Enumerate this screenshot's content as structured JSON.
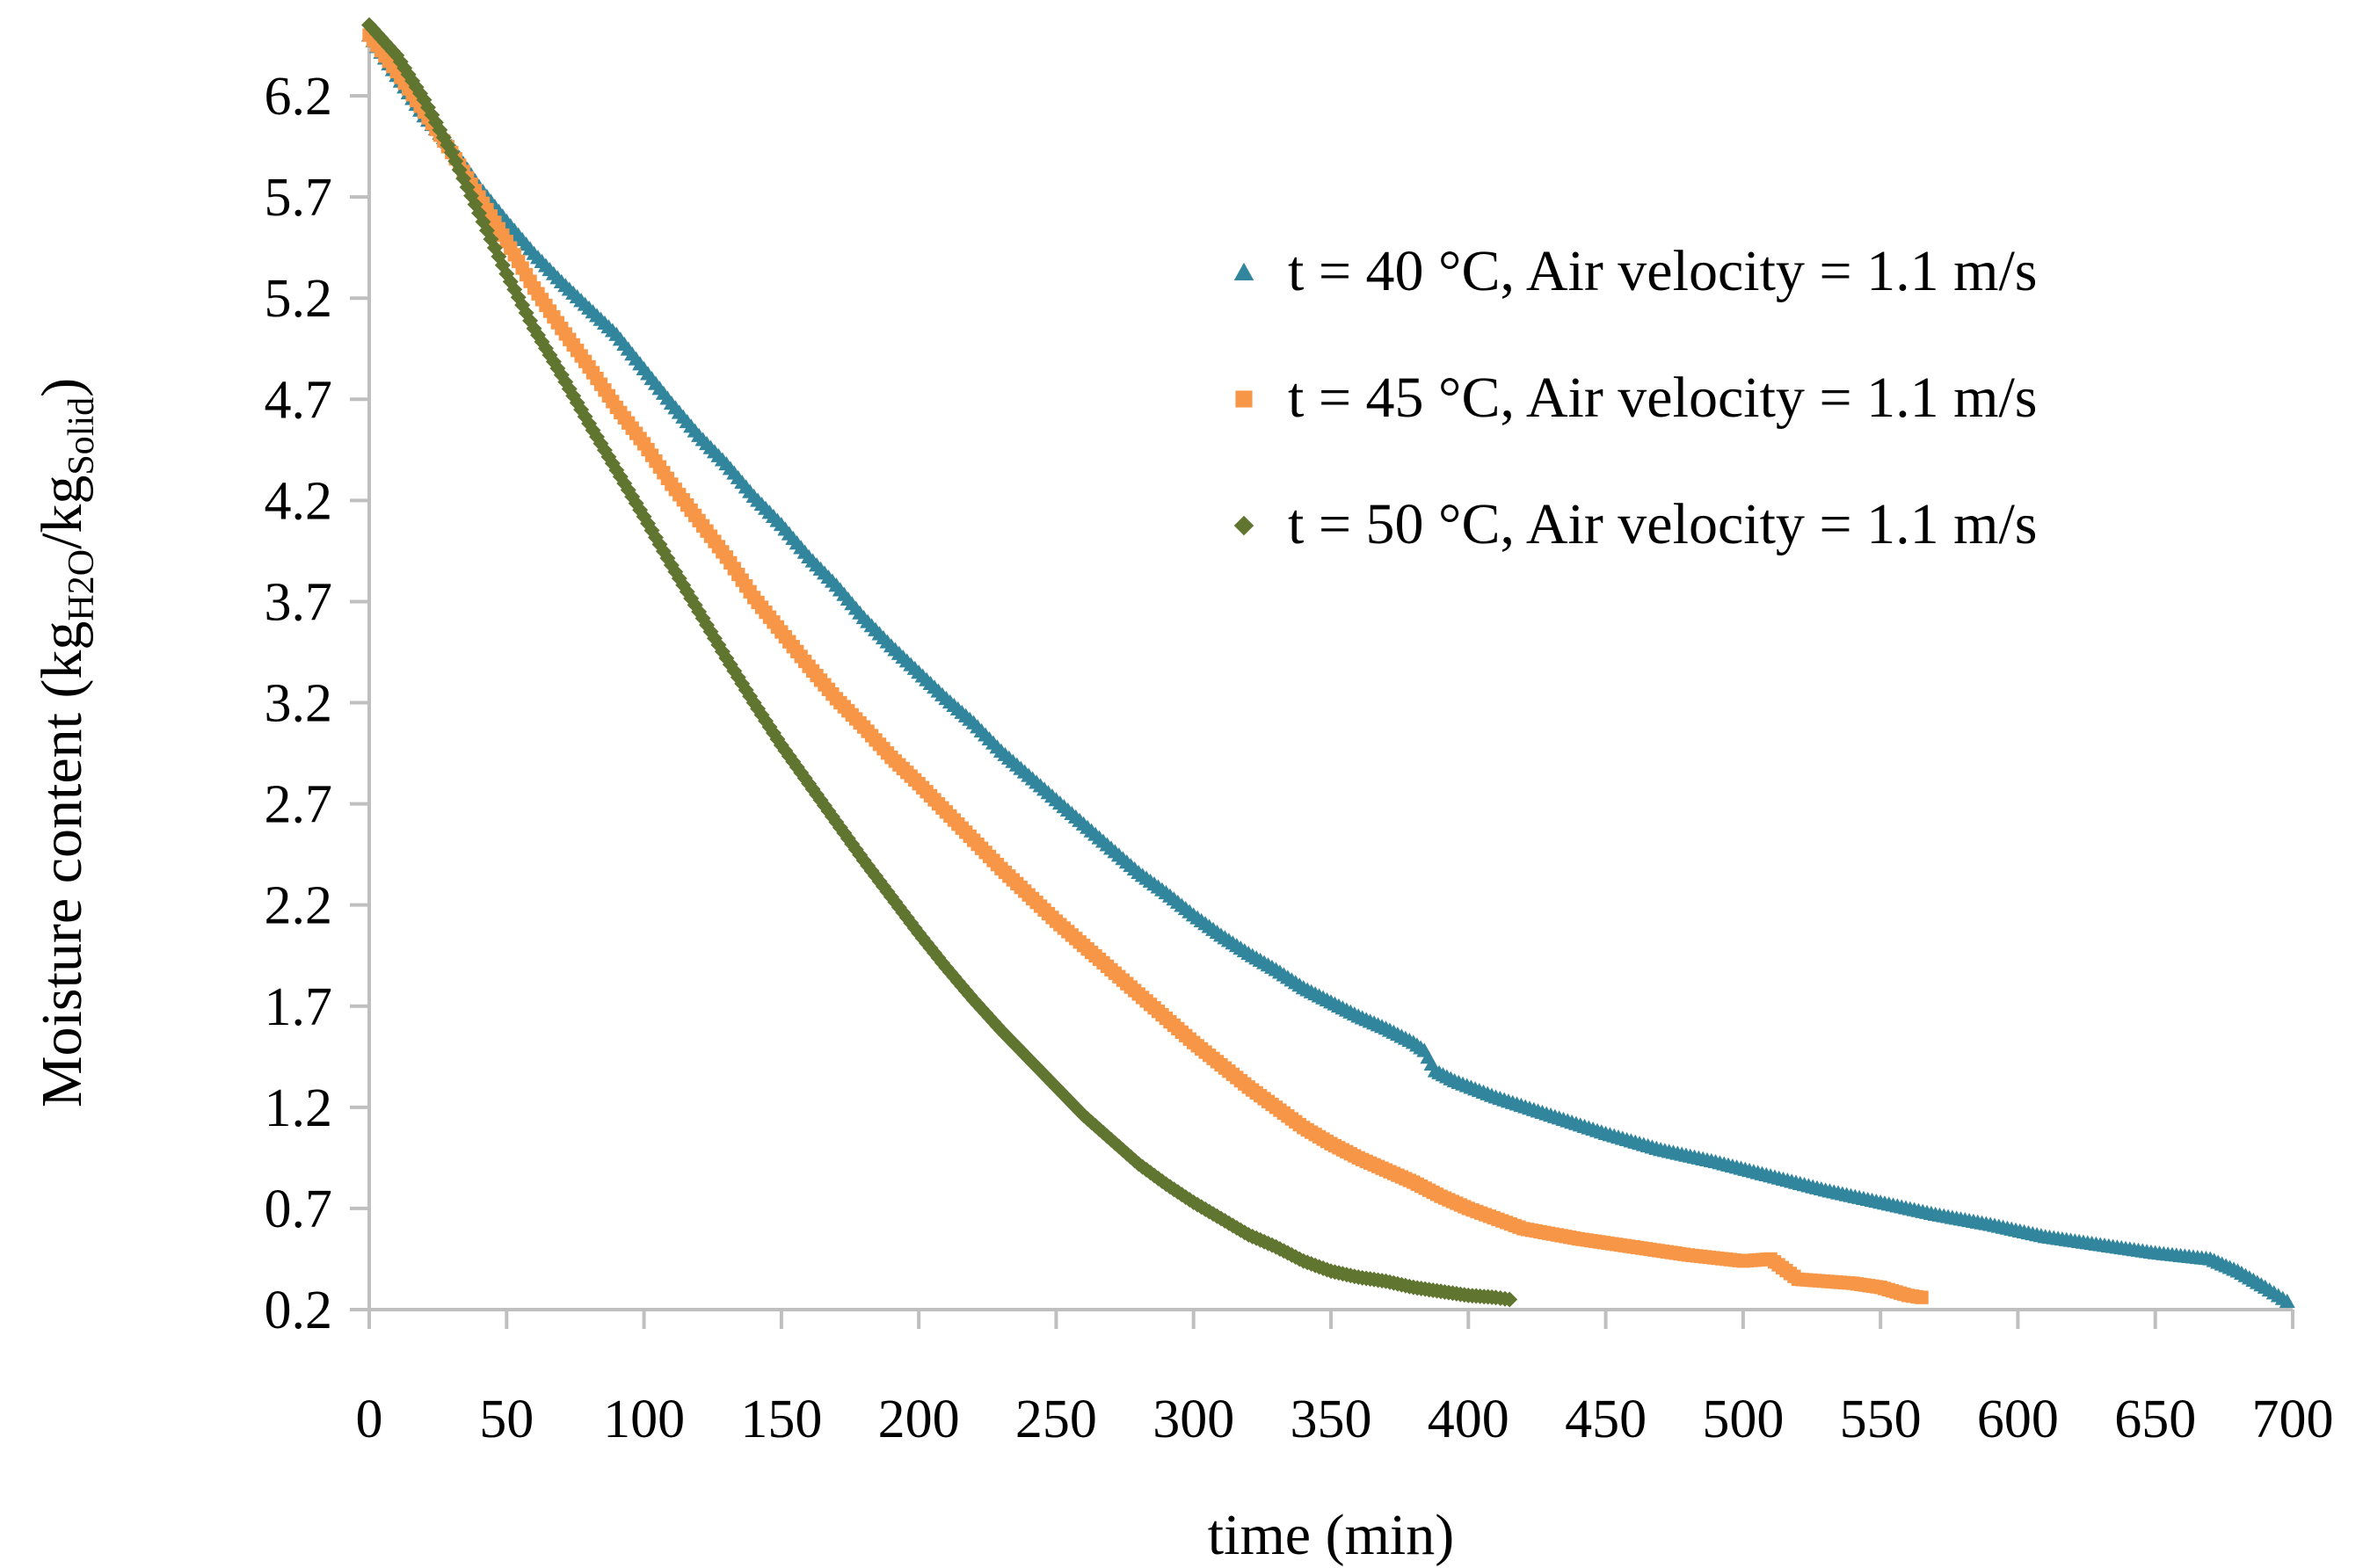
{
  "chart_data": {
    "type": "scatter",
    "title": "",
    "xlabel": "time (min)",
    "ylabel": {
      "prefix": "Moisture content (kg",
      "sub1": "H2O",
      "middle": "/kg",
      "sub2": "Solid",
      "suffix": ")"
    },
    "xlim": [
      0,
      700
    ],
    "ylim": [
      0.2,
      6.5
    ],
    "x_ticks": [
      0,
      50,
      100,
      150,
      200,
      250,
      300,
      350,
      400,
      450,
      500,
      550,
      600,
      650,
      700
    ],
    "x_tick_labels": [
      "0",
      "50",
      "100",
      "150",
      "200",
      "250",
      "300",
      "350",
      "400",
      "450",
      "500",
      "550",
      "600",
      "650",
      "700"
    ],
    "y_ticks": [
      0.2,
      0.7,
      1.2,
      1.7,
      2.2,
      2.7,
      3.2,
      3.7,
      4.2,
      4.7,
      5.2,
      5.7,
      6.2
    ],
    "y_tick_labels": [
      "0.2",
      "0.7",
      "1.2",
      "1.7",
      "2.2",
      "2.7",
      "3.2",
      "3.7",
      "4.2",
      "4.7",
      "5.2",
      "5.7",
      "6.2"
    ],
    "grid": false,
    "legend_position": "top-right",
    "series": [
      {
        "name": "t = 40 °C, Air velocity = 1.1 m/s",
        "color": "#31859c",
        "marker": "triangle",
        "points": [
          [
            0,
            6.5
          ],
          [
            10,
            6.3
          ],
          [
            20,
            6.1
          ],
          [
            30,
            5.95
          ],
          [
            40,
            5.75
          ],
          [
            50,
            5.58
          ],
          [
            60,
            5.42
          ],
          [
            70,
            5.28
          ],
          [
            80,
            5.15
          ],
          [
            90,
            5.02
          ],
          [
            100,
            4.85
          ],
          [
            110,
            4.68
          ],
          [
            120,
            4.52
          ],
          [
            130,
            4.38
          ],
          [
            140,
            4.22
          ],
          [
            150,
            4.08
          ],
          [
            160,
            3.92
          ],
          [
            170,
            3.78
          ],
          [
            180,
            3.62
          ],
          [
            190,
            3.48
          ],
          [
            200,
            3.35
          ],
          [
            210,
            3.22
          ],
          [
            220,
            3.1
          ],
          [
            230,
            2.96
          ],
          [
            240,
            2.84
          ],
          [
            250,
            2.72
          ],
          [
            260,
            2.6
          ],
          [
            270,
            2.48
          ],
          [
            280,
            2.36
          ],
          [
            290,
            2.26
          ],
          [
            300,
            2.15
          ],
          [
            310,
            2.05
          ],
          [
            320,
            1.96
          ],
          [
            330,
            1.88
          ],
          [
            340,
            1.79
          ],
          [
            350,
            1.72
          ],
          [
            360,
            1.65
          ],
          [
            370,
            1.59
          ],
          [
            380,
            1.52
          ],
          [
            384,
            1.48
          ],
          [
            388,
            1.38
          ],
          [
            395,
            1.33
          ],
          [
            410,
            1.25
          ],
          [
            430,
            1.16
          ],
          [
            450,
            1.07
          ],
          [
            470,
            0.99
          ],
          [
            490,
            0.93
          ],
          [
            510,
            0.86
          ],
          [
            530,
            0.79
          ],
          [
            550,
            0.73
          ],
          [
            570,
            0.67
          ],
          [
            590,
            0.62
          ],
          [
            610,
            0.56
          ],
          [
            630,
            0.52
          ],
          [
            650,
            0.48
          ],
          [
            670,
            0.45
          ],
          [
            680,
            0.39
          ],
          [
            690,
            0.31
          ],
          [
            698,
            0.24
          ]
        ]
      },
      {
        "name": "t = 45 °C, Air velocity = 1.1 m/s",
        "color": "#f79646",
        "marker": "square",
        "points": [
          [
            0,
            6.5
          ],
          [
            10,
            6.32
          ],
          [
            20,
            6.12
          ],
          [
            30,
            5.92
          ],
          [
            40,
            5.7
          ],
          [
            50,
            5.48
          ],
          [
            60,
            5.25
          ],
          [
            70,
            5.05
          ],
          [
            80,
            4.86
          ],
          [
            90,
            4.66
          ],
          [
            100,
            4.48
          ],
          [
            110,
            4.28
          ],
          [
            120,
            4.1
          ],
          [
            130,
            3.92
          ],
          [
            140,
            3.72
          ],
          [
            150,
            3.55
          ],
          [
            160,
            3.38
          ],
          [
            170,
            3.22
          ],
          [
            180,
            3.08
          ],
          [
            190,
            2.93
          ],
          [
            200,
            2.8
          ],
          [
            210,
            2.66
          ],
          [
            220,
            2.52
          ],
          [
            230,
            2.38
          ],
          [
            240,
            2.25
          ],
          [
            250,
            2.12
          ],
          [
            260,
            2.0
          ],
          [
            270,
            1.88
          ],
          [
            280,
            1.76
          ],
          [
            290,
            1.64
          ],
          [
            300,
            1.52
          ],
          [
            310,
            1.41
          ],
          [
            320,
            1.3
          ],
          [
            330,
            1.2
          ],
          [
            340,
            1.1
          ],
          [
            350,
            1.02
          ],
          [
            360,
            0.95
          ],
          [
            370,
            0.89
          ],
          [
            380,
            0.83
          ],
          [
            390,
            0.76
          ],
          [
            400,
            0.7
          ],
          [
            420,
            0.6
          ],
          [
            440,
            0.55
          ],
          [
            460,
            0.51
          ],
          [
            480,
            0.47
          ],
          [
            500,
            0.44
          ],
          [
            510,
            0.45
          ],
          [
            520,
            0.35
          ],
          [
            540,
            0.33
          ],
          [
            550,
            0.31
          ],
          [
            560,
            0.27
          ],
          [
            565,
            0.26
          ]
        ]
      },
      {
        "name": "t = 50 °C, Air velocity = 1.1 m/s",
        "color": "#5f7530",
        "marker": "diamond",
        "points": [
          [
            0,
            6.55
          ],
          [
            10,
            6.4
          ],
          [
            20,
            6.18
          ],
          [
            30,
            5.92
          ],
          [
            40,
            5.62
          ],
          [
            50,
            5.32
          ],
          [
            60,
            5.05
          ],
          [
            70,
            4.82
          ],
          [
            80,
            4.58
          ],
          [
            90,
            4.35
          ],
          [
            100,
            4.12
          ],
          [
            110,
            3.88
          ],
          [
            120,
            3.65
          ],
          [
            130,
            3.42
          ],
          [
            140,
            3.2
          ],
          [
            150,
            2.99
          ],
          [
            160,
            2.8
          ],
          [
            170,
            2.61
          ],
          [
            180,
            2.42
          ],
          [
            190,
            2.24
          ],
          [
            200,
            2.06
          ],
          [
            210,
            1.89
          ],
          [
            220,
            1.73
          ],
          [
            230,
            1.58
          ],
          [
            240,
            1.44
          ],
          [
            250,
            1.3
          ],
          [
            260,
            1.16
          ],
          [
            270,
            1.04
          ],
          [
            280,
            0.92
          ],
          [
            290,
            0.82
          ],
          [
            300,
            0.73
          ],
          [
            310,
            0.65
          ],
          [
            320,
            0.57
          ],
          [
            330,
            0.51
          ],
          [
            340,
            0.44
          ],
          [
            350,
            0.39
          ],
          [
            360,
            0.36
          ],
          [
            370,
            0.34
          ],
          [
            380,
            0.31
          ],
          [
            390,
            0.29
          ],
          [
            400,
            0.27
          ],
          [
            410,
            0.26
          ],
          [
            415,
            0.25
          ]
        ]
      }
    ]
  }
}
